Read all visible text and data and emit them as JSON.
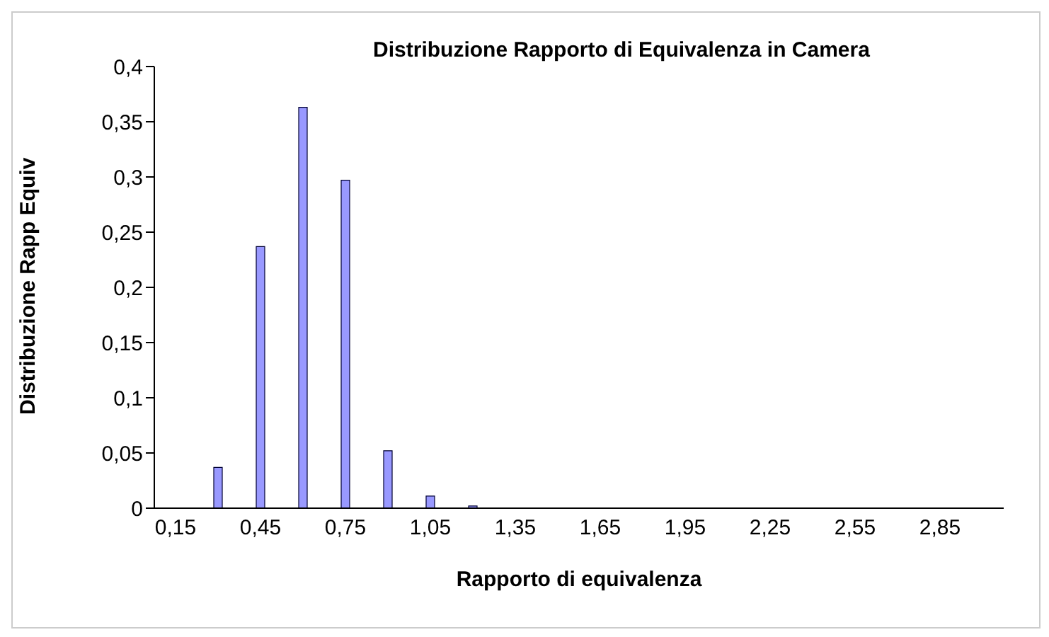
{
  "chart_data": {
    "type": "bar",
    "title": "Distribuzione Rapporto di Equivalenza in Camera",
    "xlabel": "Rapporto di equivalenza",
    "ylabel": "Distribuzione Rapp Equiv",
    "categories": [
      "0,15",
      null,
      "0,45",
      null,
      "0,75",
      null,
      "1,05",
      null,
      "1,35",
      null,
      "1,65",
      null,
      "1,95",
      null,
      "2,25",
      null,
      "2,55",
      null,
      "2,85",
      null
    ],
    "values": [
      0,
      0.037,
      0.237,
      0.363,
      0.297,
      0.052,
      0.011,
      0.002,
      0,
      0,
      0,
      0,
      0,
      0,
      0,
      0,
      0,
      0,
      0,
      0
    ],
    "color": "#9999ff",
    "ylim": [
      0,
      0.4
    ],
    "yticks": [
      0,
      {
        "value": 0.05,
        "label": "0,05"
      },
      {
        "value": 0.1,
        "label": "0,1"
      },
      {
        "value": 0.15,
        "label": "0,15"
      },
      {
        "value": 0.2,
        "label": "0,2"
      },
      {
        "value": 0.25,
        "label": "0,25"
      },
      {
        "value": 0.3,
        "label": "0,3"
      },
      {
        "value": 0.35,
        "label": "0,35"
      },
      {
        "value": 0.4,
        "label": "0,4"
      }
    ],
    "grid": false,
    "legend": false
  }
}
